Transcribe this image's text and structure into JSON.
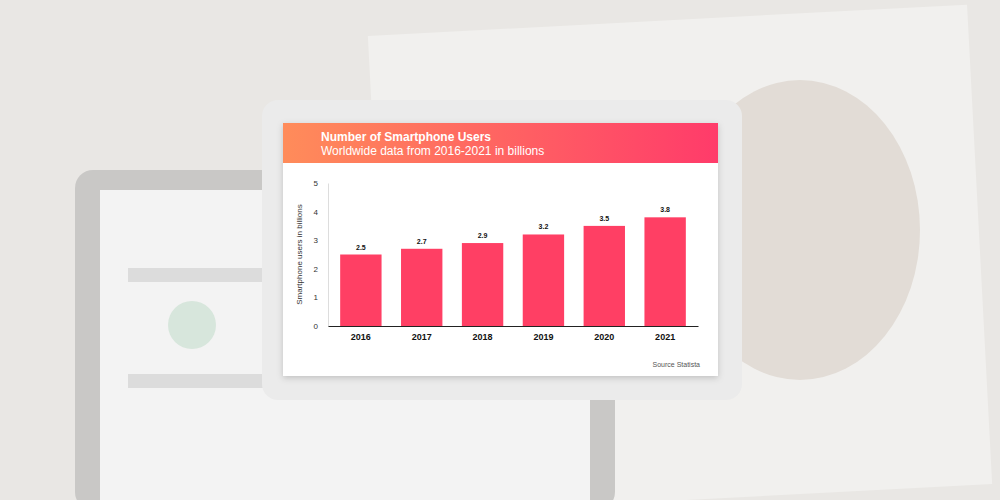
{
  "chart_data": {
    "type": "bar",
    "title": "Number of Smartphone Users",
    "subtitle": "Worldwide data from 2016-2021 in billions",
    "y_label": "Smartphone users in billions",
    "source": "Source Statista",
    "categories": [
      "2016",
      "2017",
      "2018",
      "2019",
      "2020",
      "2021"
    ],
    "values": [
      2.5,
      2.7,
      2.9,
      3.2,
      3.5,
      3.8
    ],
    "color": "#ff3f64",
    "ylim": [
      0,
      5
    ],
    "yticks": [
      0,
      1,
      2,
      3,
      4,
      5
    ],
    "grid": false,
    "data_labels": true
  }
}
